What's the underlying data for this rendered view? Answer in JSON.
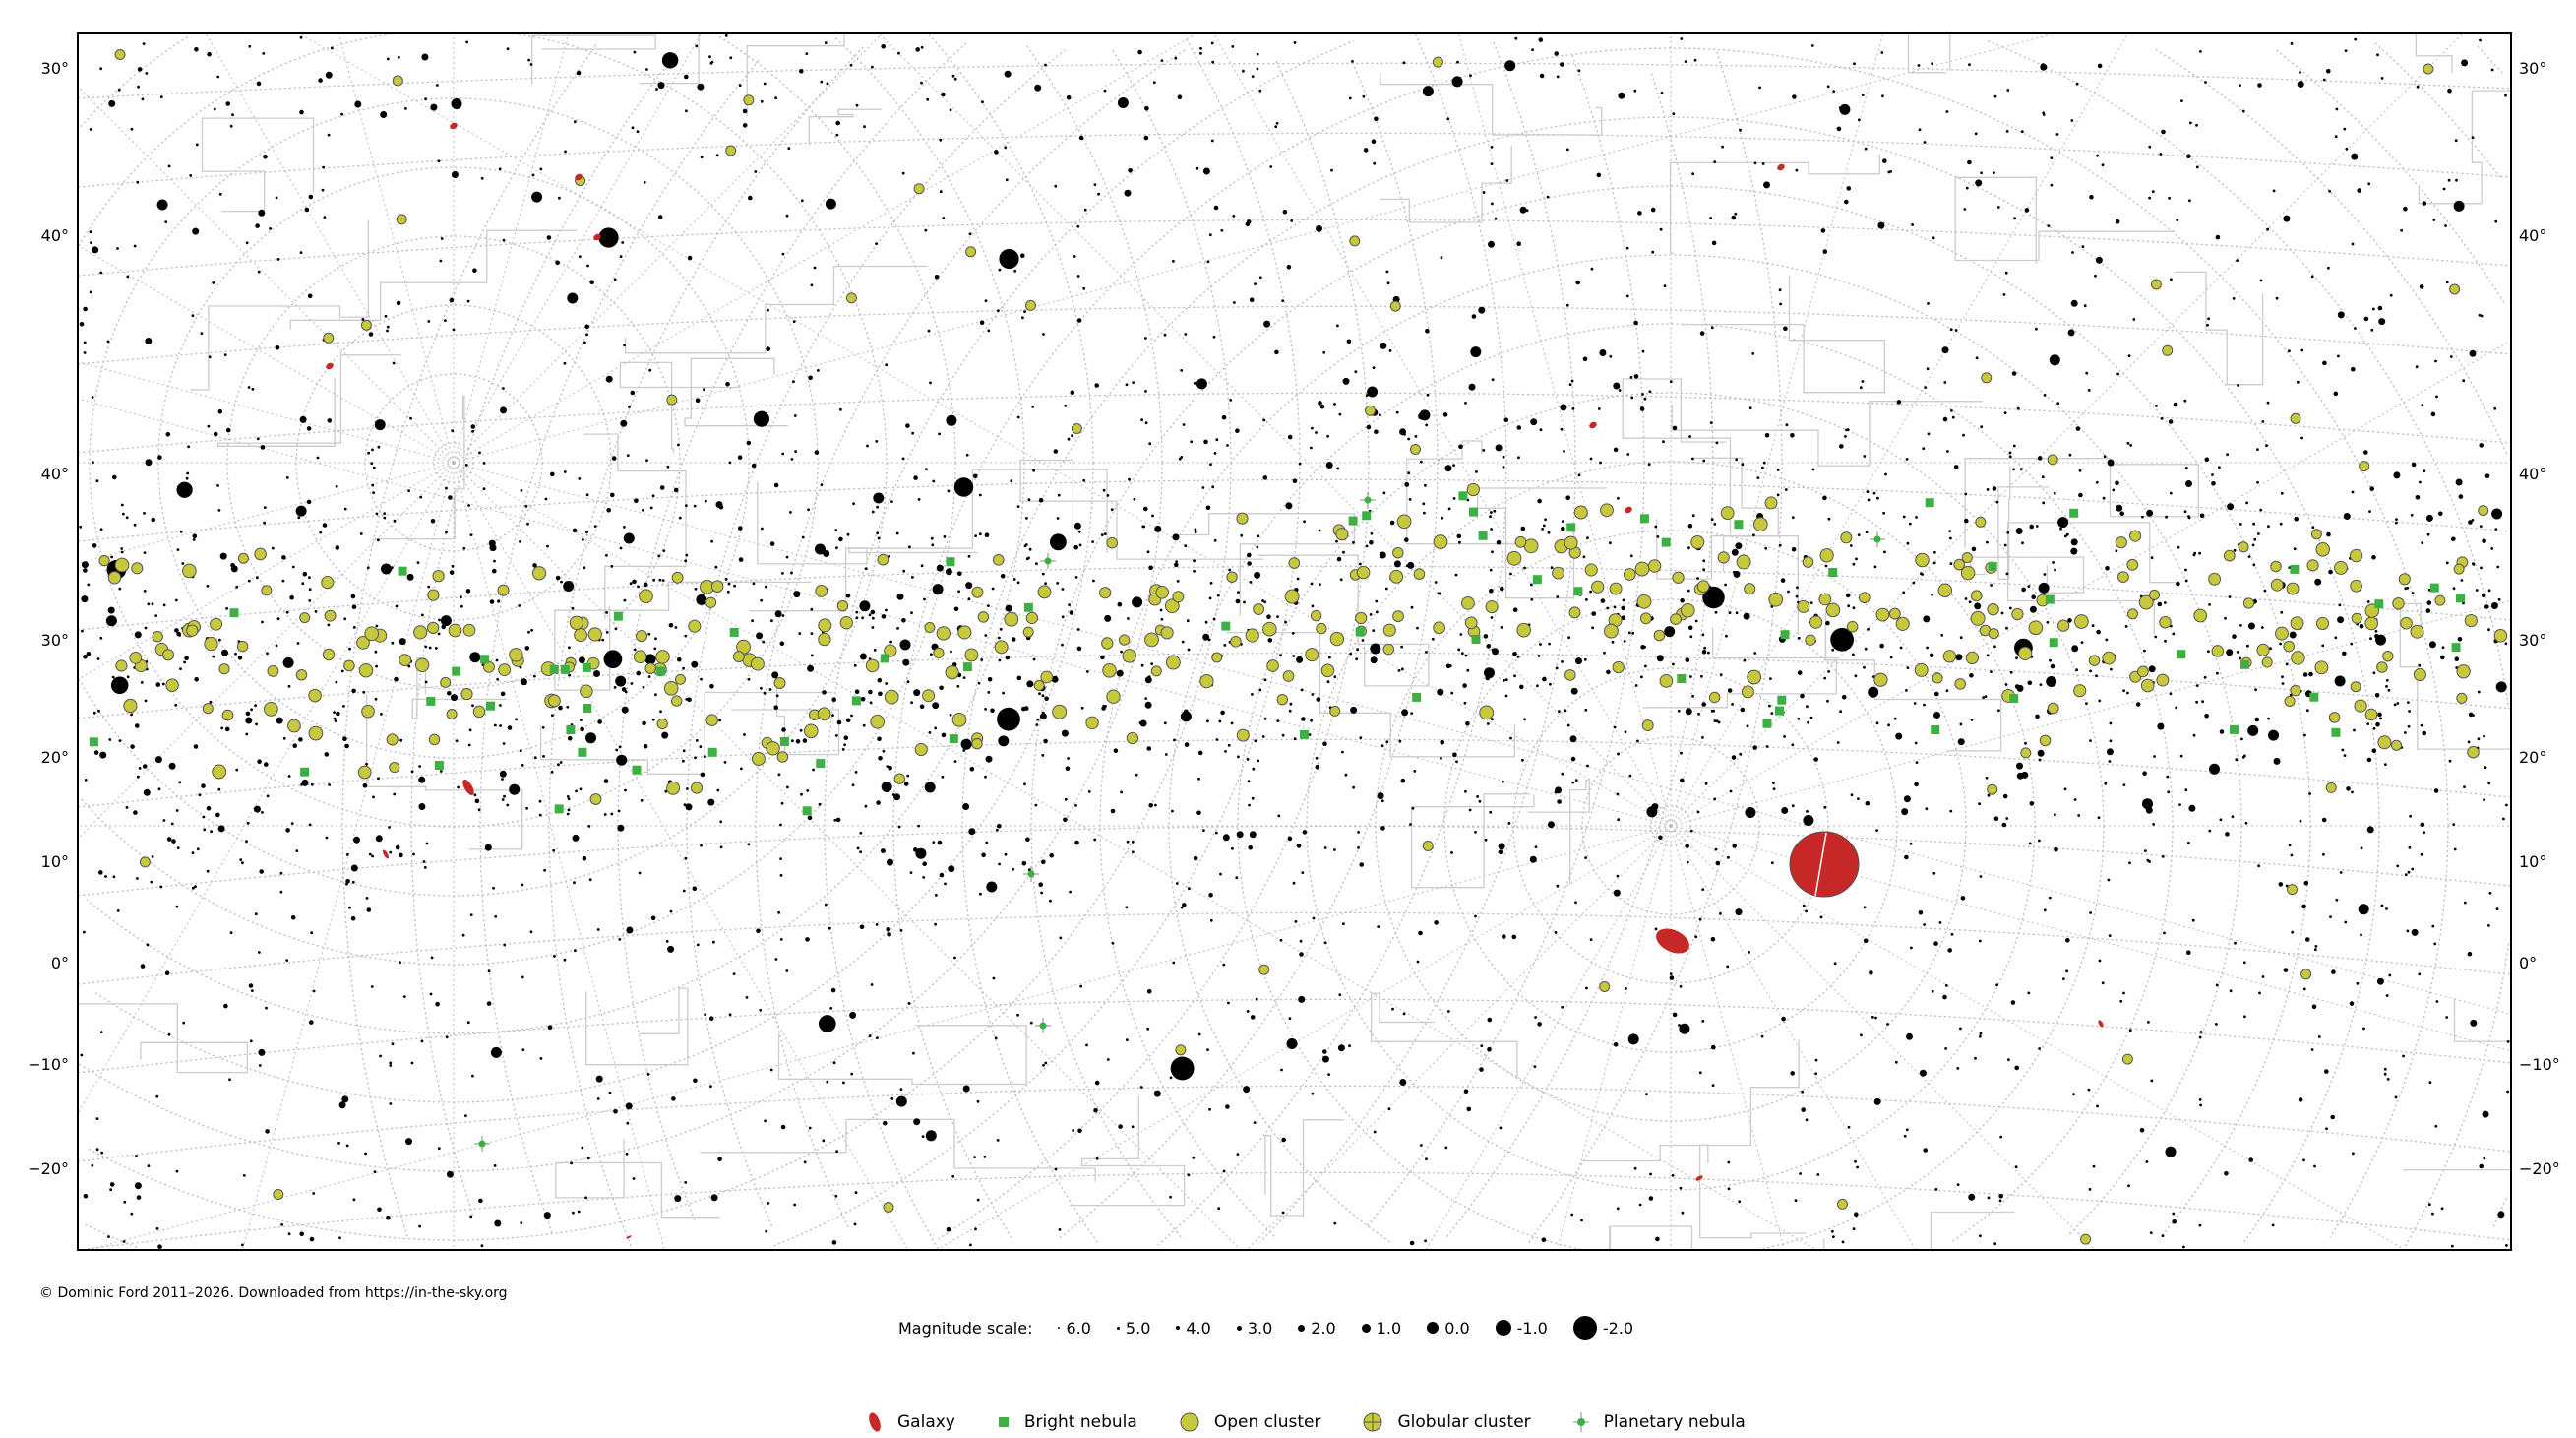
{
  "map": {
    "left_axis_labels": [
      "30°",
      "40°",
      "40°",
      "30°",
      "20°",
      "10°",
      "0°",
      "−10°",
      "−20°"
    ],
    "right_axis_labels": [
      "30°",
      "40°",
      "40°",
      "30°",
      "20°",
      "10°",
      "0°",
      "−10°",
      "−20°"
    ],
    "colors": {
      "star": "#000000",
      "galaxy": "#c62828",
      "bright_nebula": "#3cb043",
      "open_cluster": "#c8c83c",
      "globular_cluster": "#c8c83c",
      "planetary_nebula": "#3cb043",
      "grid": "#bbbbbb",
      "constellation_boundary": "#cccccc"
    }
  },
  "copyright": "© Dominic Ford 2011–2026. Downloaded from https://in-the-sky.org",
  "magnitude_scale": {
    "label": "Magnitude scale:",
    "entries": [
      "6.0",
      "5.0",
      "4.0",
      "3.0",
      "2.0",
      "1.0",
      "0.0",
      "-1.0",
      "-2.0"
    ]
  },
  "legend": {
    "galaxy": "Galaxy",
    "bright_nebula": "Bright nebula",
    "open_cluster": "Open cluster",
    "globular_cluster": "Globular cluster",
    "planetary_nebula": "Planetary nebula"
  }
}
